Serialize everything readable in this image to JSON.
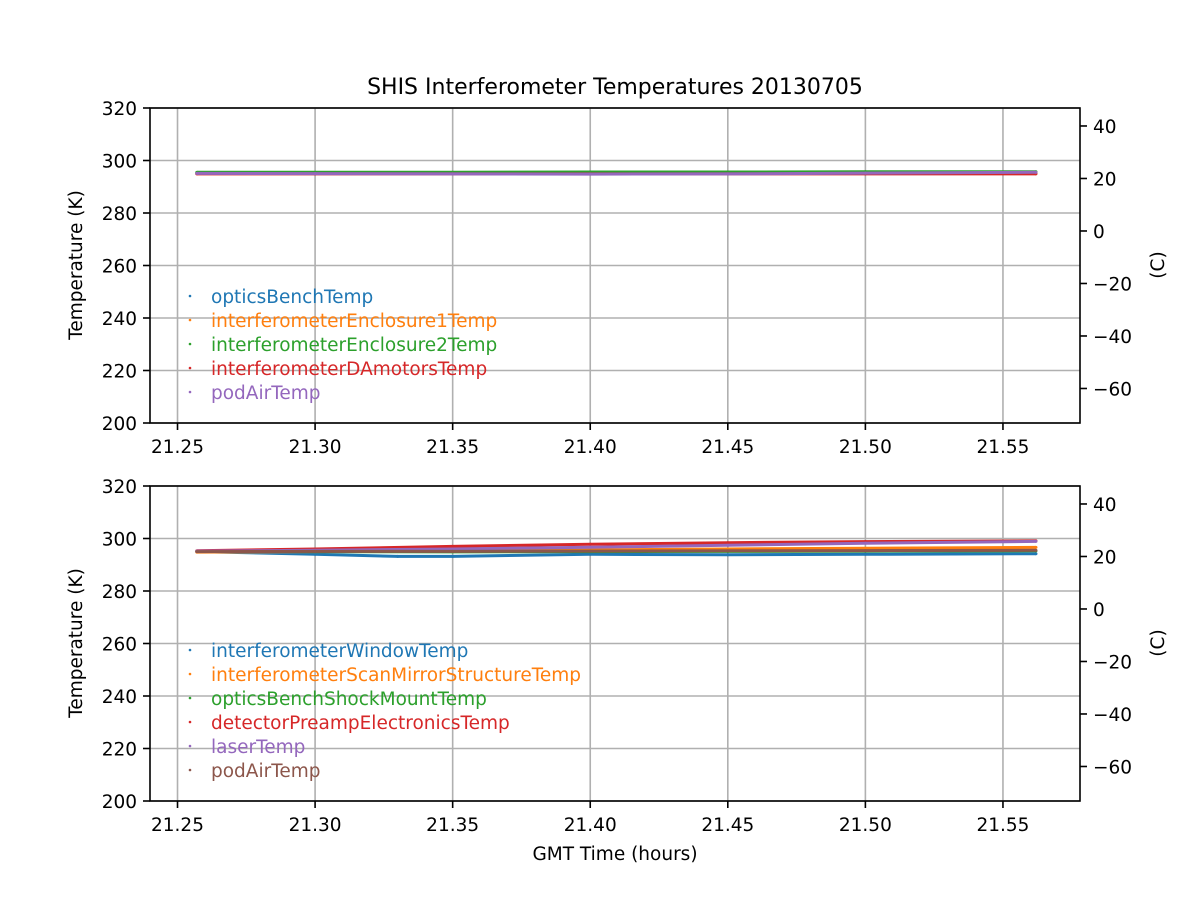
{
  "figure": {
    "title": "SHIS Interferometer Temperatures 20130705",
    "xlabel": "GMT Time (hours)"
  },
  "chart_data": [
    {
      "type": "scatter",
      "title": "SHIS Interferometer Temperatures 20130705",
      "xlabel": "",
      "ylabel": "Temperature (K)",
      "y2label": "(C)",
      "xlim": [
        21.24,
        21.578
      ],
      "ylim": [
        200,
        320
      ],
      "y2lim": [
        -73.15,
        46.85
      ],
      "xticks": [
        "21.25",
        "21.30",
        "21.35",
        "21.40",
        "21.45",
        "21.50",
        "21.55"
      ],
      "xtick_values": [
        21.25,
        21.3,
        21.35,
        21.4,
        21.45,
        21.5,
        21.55
      ],
      "yticks": [
        "200",
        "220",
        "240",
        "260",
        "280",
        "300",
        "320"
      ],
      "ytick_values": [
        200,
        220,
        240,
        260,
        280,
        300,
        320
      ],
      "y2ticks": [
        "40",
        "20",
        "0",
        "−20",
        "−40",
        "−60"
      ],
      "y2tick_values": [
        40,
        20,
        0,
        -20,
        -40,
        -60
      ],
      "grid": true,
      "legend_location": "lower-left",
      "series": [
        {
          "name": "opticsBenchTemp",
          "color": "#1f77b4",
          "x": [
            21.257,
            21.3,
            21.35,
            21.4,
            21.45,
            21.5,
            21.562
          ],
          "values": [
            295.3,
            295.3,
            295.2,
            295.3,
            295.3,
            295.3,
            295.3
          ]
        },
        {
          "name": "interferometerEnclosure1Temp",
          "color": "#ff7f0e",
          "x": [
            21.257,
            21.3,
            21.35,
            21.4,
            21.45,
            21.5,
            21.562
          ],
          "values": [
            295.0,
            295.0,
            295.0,
            295.1,
            295.1,
            295.2,
            295.2
          ]
        },
        {
          "name": "interferometerEnclosure2Temp",
          "color": "#2ca02c",
          "x": [
            21.257,
            21.3,
            21.35,
            21.4,
            21.45,
            21.5,
            21.562
          ],
          "values": [
            295.5,
            295.5,
            295.5,
            295.6,
            295.6,
            295.7,
            295.7
          ]
        },
        {
          "name": "interferometerDAmotorsTemp",
          "color": "#d62728",
          "x": [
            21.257,
            21.3,
            21.35,
            21.4,
            21.45,
            21.5,
            21.562
          ],
          "values": [
            294.9,
            294.9,
            294.9,
            294.9,
            294.9,
            294.9,
            294.9
          ]
        },
        {
          "name": "podAirTemp",
          "color": "#9467bd",
          "x": [
            21.257,
            21.3,
            21.35,
            21.4,
            21.45,
            21.5,
            21.562
          ],
          "values": [
            295.1,
            295.0,
            294.9,
            294.8,
            294.9,
            295.2,
            295.5
          ]
        }
      ]
    },
    {
      "type": "scatter",
      "title": "",
      "xlabel": "GMT Time (hours)",
      "ylabel": "Temperature (K)",
      "y2label": "(C)",
      "xlim": [
        21.24,
        21.578
      ],
      "ylim": [
        200,
        320
      ],
      "y2lim": [
        -73.15,
        46.85
      ],
      "xticks": [
        "21.25",
        "21.30",
        "21.35",
        "21.40",
        "21.45",
        "21.50",
        "21.55"
      ],
      "xtick_values": [
        21.25,
        21.3,
        21.35,
        21.4,
        21.45,
        21.5,
        21.55
      ],
      "yticks": [
        "200",
        "220",
        "240",
        "260",
        "280",
        "300",
        "320"
      ],
      "ytick_values": [
        200,
        220,
        240,
        260,
        280,
        300,
        320
      ],
      "y2ticks": [
        "40",
        "20",
        "0",
        "−20",
        "−40",
        "−60"
      ],
      "y2tick_values": [
        40,
        20,
        0,
        -20,
        -40,
        -60
      ],
      "grid": true,
      "legend_location": "lower-left",
      "series": [
        {
          "name": "interferometerWindowTemp",
          "color": "#1f77b4",
          "x": [
            21.257,
            21.3,
            21.33,
            21.35,
            21.4,
            21.45,
            21.5,
            21.562
          ],
          "values": [
            295.0,
            294.0,
            293.2,
            293.2,
            294.0,
            293.8,
            294.0,
            294.2
          ]
        },
        {
          "name": "interferometerScanMirrorStructureTemp",
          "color": "#ff7f0e",
          "x": [
            21.257,
            21.3,
            21.35,
            21.4,
            21.45,
            21.5,
            21.562
          ],
          "values": [
            294.8,
            295.0,
            295.2,
            295.6,
            296.0,
            296.3,
            296.6
          ]
        },
        {
          "name": "opticsBenchShockMountTemp",
          "color": "#2ca02c",
          "x": [
            21.257,
            21.3,
            21.35,
            21.4,
            21.45,
            21.5,
            21.562
          ],
          "values": [
            295.2,
            295.0,
            294.9,
            295.0,
            295.1,
            295.2,
            295.3
          ]
        },
        {
          "name": "detectorPreampElectronicsTemp",
          "color": "#d62728",
          "x": [
            21.257,
            21.3,
            21.35,
            21.4,
            21.45,
            21.5,
            21.562
          ],
          "values": [
            295.3,
            296.0,
            297.0,
            297.8,
            298.4,
            298.8,
            299.1
          ]
        },
        {
          "name": "laserTemp",
          "color": "#9467bd",
          "x": [
            21.257,
            21.3,
            21.35,
            21.4,
            21.45,
            21.5,
            21.562
          ],
          "values": [
            295.2,
            295.5,
            296.0,
            296.7,
            297.4,
            298.2,
            298.9
          ]
        },
        {
          "name": "podAirTemp",
          "color": "#8c564b",
          "x": [
            21.257,
            21.3,
            21.35,
            21.4,
            21.45,
            21.5,
            21.562
          ],
          "values": [
            295.0,
            295.1,
            295.1,
            295.2,
            295.3,
            295.4,
            295.5
          ]
        }
      ]
    }
  ]
}
